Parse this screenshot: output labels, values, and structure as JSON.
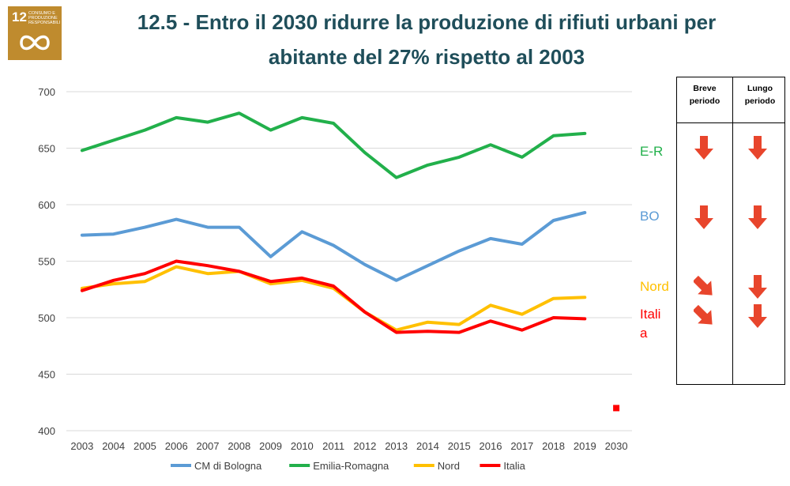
{
  "sdg_badge": {
    "number": "12",
    "text": "Consumo e produzione responsabili",
    "icon": "infinity-icon",
    "color": "#BF8B2E"
  },
  "title_line1": "12.5 - Entro il 2030 ridurre la produzione di rifiuti urbani per",
  "title_line2": "abitante del 27% rispetto al 2003",
  "chart_data": {
    "type": "line",
    "x": [
      "2003",
      "2004",
      "2005",
      "2006",
      "2007",
      "2008",
      "2009",
      "2010",
      "2011",
      "2012",
      "2013",
      "2014",
      "2015",
      "2016",
      "2017",
      "2018",
      "2019",
      "2030"
    ],
    "ylim": [
      400,
      700
    ],
    "yticks": [
      "400",
      "450",
      "500",
      "550",
      "600",
      "650",
      "700"
    ],
    "grid": true,
    "legend_position": "bottom",
    "series": [
      {
        "name": "CM di Bologna",
        "color": "#5B9BD5",
        "values": [
          573,
          574,
          580,
          587,
          580,
          580,
          554,
          576,
          564,
          547,
          533,
          546,
          559,
          570,
          565,
          586,
          593,
          null
        ]
      },
      {
        "name": "Emilia-Romagna",
        "color": "#22B04B",
        "values": [
          648,
          657,
          666,
          677,
          673,
          681,
          666,
          677,
          672,
          646,
          624,
          635,
          642,
          653,
          642,
          661,
          663,
          null
        ]
      },
      {
        "name": "Nord",
        "color": "#FFC000",
        "values": [
          526,
          530,
          532,
          545,
          539,
          541,
          530,
          533,
          526,
          505,
          489,
          496,
          494,
          511,
          503,
          517,
          518,
          null
        ]
      },
      {
        "name": "Italia",
        "color": "#FF0000",
        "values": [
          524,
          533,
          539,
          550,
          546,
          541,
          532,
          535,
          528,
          505,
          487,
          488,
          487,
          497,
          489,
          500,
          499,
          null
        ]
      }
    ],
    "target": {
      "x": "2030",
      "value": 420,
      "color": "#FF0000"
    }
  },
  "assessment": {
    "headers": [
      "Breve periodo",
      "Lungo periodo"
    ],
    "rows": [
      {
        "label": "E-R",
        "color": "#22B04B",
        "short": "down",
        "long": "down"
      },
      {
        "label": "BO",
        "color": "#5B9BD5",
        "short": "down",
        "long": "down"
      },
      {
        "label": "Nord",
        "color": "#FFC000",
        "short": "down-right",
        "long": "down"
      },
      {
        "label": "Itali\na",
        "color": "#FF0000",
        "short": "down-right",
        "long": "down"
      }
    ],
    "arrow_color": "#E8452C"
  }
}
